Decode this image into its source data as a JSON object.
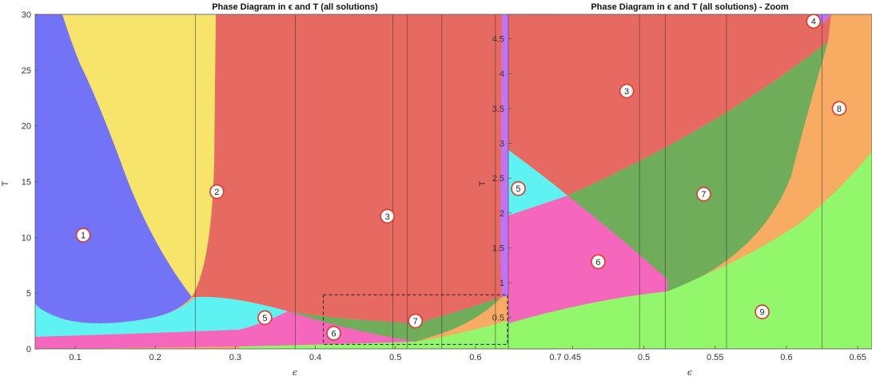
{
  "chart_data": [
    {
      "type": "area",
      "title": "Phase Diagram in ϵ and T (all solutions)",
      "xlabel": "ϵ",
      "ylabel": "T",
      "xlim": [
        0.05,
        0.7
      ],
      "ylim": [
        0,
        30
      ],
      "xticks": [
        "0.1",
        "0.2",
        "0.3",
        "0.4",
        "0.5",
        "0.6",
        "0.7"
      ],
      "yticks": [
        "0",
        "5",
        "10",
        "15",
        "20",
        "25",
        "30"
      ],
      "regions": [
        {
          "label": "1",
          "color": "#7373f7",
          "label_pos": [
            0.11,
            10.2
          ]
        },
        {
          "label": "2",
          "color": "#f7e46b",
          "label_pos": [
            0.277,
            14.1
          ]
        },
        {
          "label": "3",
          "color": "#e76a62",
          "label_pos": [
            0.49,
            11.9
          ]
        },
        {
          "label": "4",
          "color": "#c173f7",
          "label_pos": [
            0.66,
            12.2
          ]
        },
        {
          "label": "5",
          "color": "#5ff2f2",
          "label_pos": [
            0.337,
            2.8
          ]
        },
        {
          "label": "6",
          "color": "#f567bd",
          "label_pos": [
            0.423,
            1.4
          ]
        },
        {
          "label": "7",
          "color": "#6fad5b",
          "label_pos": [
            0.525,
            2.5
          ]
        },
        {
          "label": "8",
          "color": "#f7ab63",
          "label_pos": [
            0.66,
            4.3
          ]
        },
        {
          "label": "9",
          "color": "#93f76b",
          "label_pos": [
            0.658,
            1.4
          ]
        }
      ],
      "vertical_lines": [
        0.25,
        0.375,
        0.497,
        0.515,
        0.558,
        0.625
      ],
      "zoom_box": {
        "x": [
          0.41,
          0.64
        ],
        "y": [
          0.4,
          4.85
        ]
      },
      "grid": false,
      "legend": "none"
    },
    {
      "type": "area",
      "title": "Phase Diagram in ϵ and T (all solutions) - Zoom",
      "xlabel": "ϵ",
      "ylabel": "T",
      "xlim": [
        0.405,
        0.66
      ],
      "ylim": [
        0.05,
        4.85
      ],
      "xticks": [
        "0.45",
        "0.5",
        "0.55",
        "0.6",
        "0.65"
      ],
      "yticks": [
        "0.5",
        "1",
        "1.5",
        "2",
        "2.5",
        "3",
        "3.5",
        "4",
        "4.5"
      ],
      "regions": [
        {
          "label": "3",
          "color": "#e76a62",
          "label_pos": [
            0.488,
            3.75
          ]
        },
        {
          "label": "4",
          "color": "#c173f7",
          "label_pos": [
            0.619,
            4.75
          ]
        },
        {
          "label": "5",
          "color": "#5ff2f2",
          "label_pos": [
            0.412,
            2.35
          ]
        },
        {
          "label": "6",
          "color": "#f567bd",
          "label_pos": [
            0.468,
            1.3
          ]
        },
        {
          "label": "7",
          "color": "#6fad5b",
          "label_pos": [
            0.542,
            2.27
          ]
        },
        {
          "label": "8",
          "color": "#f7ab63",
          "label_pos": [
            0.637,
            3.5
          ]
        },
        {
          "label": "9",
          "color": "#93f76b",
          "label_pos": [
            0.583,
            0.58
          ]
        }
      ],
      "vertical_lines": [
        0.497,
        0.515,
        0.558,
        0.625
      ],
      "grid": false,
      "legend": "none"
    }
  ]
}
